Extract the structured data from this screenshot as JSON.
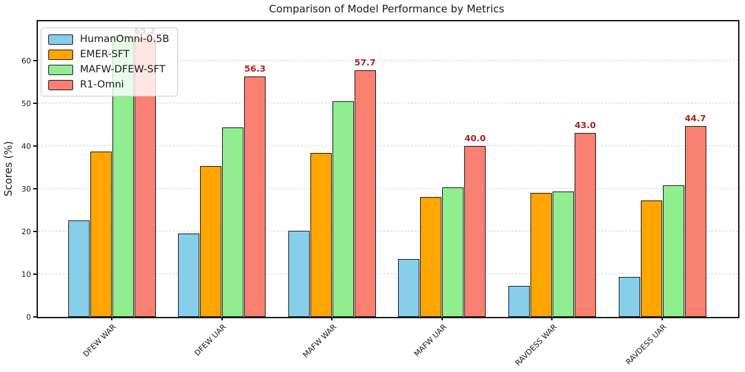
{
  "chart_data": {
    "type": "bar",
    "title": "Comparison of Model Performance by Metrics",
    "xlabel": "",
    "ylabel": "Scores (%)",
    "categories": [
      "DFEW WAR",
      "DFEW UAR",
      "MAFW WAR",
      "MAFW UAR",
      "RAVDESS WAR",
      "RAVDESS UAR"
    ],
    "series": [
      {
        "name": "HumanOmni-0.5B",
        "color": "#87CEEB",
        "values": [
          22.64,
          19.44,
          20.18,
          13.52,
          7.33,
          9.38
        ]
      },
      {
        "name": "EMER-SFT",
        "color": "#FFA500",
        "values": [
          38.66,
          35.31,
          38.39,
          28.02,
          29.0,
          27.19
        ]
      },
      {
        "name": "MAFW-DFEW-SFT",
        "color": "#90EE90",
        "values": [
          65.83,
          44.36,
          50.44,
          30.39,
          29.33,
          30.75
        ]
      },
      {
        "name": "R1-Omni",
        "color": "#FA8072",
        "values": [
          65.2,
          56.27,
          57.68,
          40.04,
          43.0,
          44.69
        ],
        "value_labels": [
          "65.2",
          "56.3",
          "57.7",
          "40.0",
          "43.0",
          "44.7"
        ]
      }
    ],
    "yticks": [
      0,
      10,
      20,
      30,
      40,
      50,
      60
    ],
    "ylim": [
      0,
      69.2
    ],
    "grid": "horizontal-dashed",
    "legend_position": "upper-left",
    "colors": {
      "value_label": "#B22222",
      "bar_edge": "#1a1a1a",
      "gridline": "#d4d4d4",
      "spine": "#1a1a1a"
    }
  }
}
